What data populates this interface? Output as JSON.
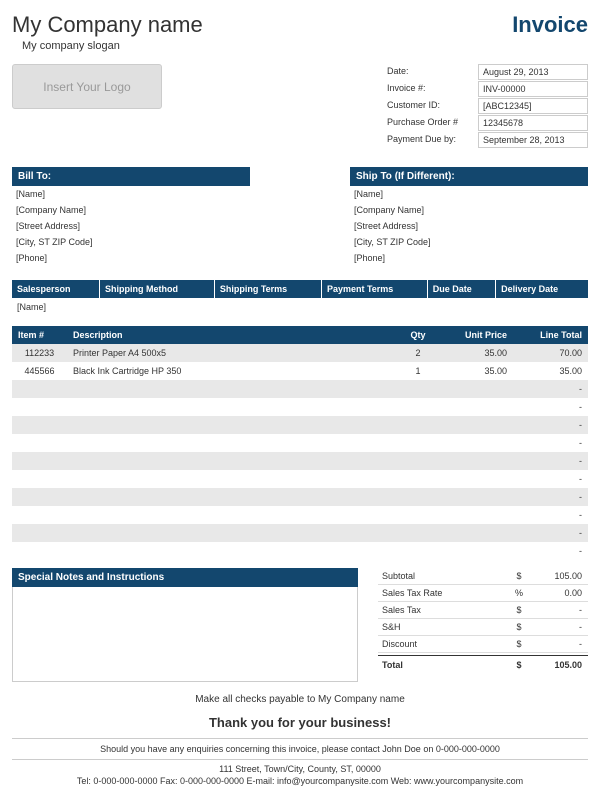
{
  "header": {
    "company_name": "My Company name",
    "slogan": "My company slogan",
    "title": "Invoice",
    "logo_placeholder": "Insert Your Logo"
  },
  "meta": {
    "rows": [
      {
        "label": "Date:",
        "value": "August 29, 2013"
      },
      {
        "label": "Invoice #:",
        "value": "INV-00000"
      },
      {
        "label": "Customer ID:",
        "value": "[ABC12345]"
      },
      {
        "label": "Purchase Order #",
        "value": "12345678"
      },
      {
        "label": "Payment Due by:",
        "value": "September 28, 2013"
      }
    ]
  },
  "bill_to": {
    "header": "Bill To:",
    "lines": [
      "[Name]",
      "[Company Name]",
      "[Street Address]",
      "[City, ST  ZIP Code]",
      "[Phone]"
    ]
  },
  "ship_to": {
    "header": "Ship To (If Different):",
    "lines": [
      "[Name]",
      "[Company Name]",
      "[Street Address]",
      "[City, ST  ZIP Code]",
      "[Phone]"
    ]
  },
  "terms": {
    "headers": [
      "Salesperson",
      "Shipping Method",
      "Shipping Terms",
      "Payment Terms",
      "Due Date",
      "Delivery Date"
    ],
    "row": [
      "[Name]",
      "",
      "",
      "",
      "",
      ""
    ]
  },
  "items": {
    "headers": {
      "item": "Item #",
      "desc": "Description",
      "qty": "Qty",
      "price": "Unit Price",
      "total": "Line Total"
    },
    "rows": [
      {
        "item": "112233",
        "desc": "Printer Paper A4 500x5",
        "qty": "2",
        "price": "35.00",
        "total": "70.00"
      },
      {
        "item": "445566",
        "desc": "Black Ink Cartridge HP 350",
        "qty": "1",
        "price": "35.00",
        "total": "35.00"
      },
      {
        "item": "",
        "desc": "",
        "qty": "",
        "price": "",
        "total": "-"
      },
      {
        "item": "",
        "desc": "",
        "qty": "",
        "price": "",
        "total": "-"
      },
      {
        "item": "",
        "desc": "",
        "qty": "",
        "price": "",
        "total": "-"
      },
      {
        "item": "",
        "desc": "",
        "qty": "",
        "price": "",
        "total": "-"
      },
      {
        "item": "",
        "desc": "",
        "qty": "",
        "price": "",
        "total": "-"
      },
      {
        "item": "",
        "desc": "",
        "qty": "",
        "price": "",
        "total": "-"
      },
      {
        "item": "",
        "desc": "",
        "qty": "",
        "price": "",
        "total": "-"
      },
      {
        "item": "",
        "desc": "",
        "qty": "",
        "price": "",
        "total": "-"
      },
      {
        "item": "",
        "desc": "",
        "qty": "",
        "price": "",
        "total": "-"
      },
      {
        "item": "",
        "desc": "",
        "qty": "",
        "price": "",
        "total": "-"
      }
    ]
  },
  "notes": {
    "header": "Special Notes and Instructions"
  },
  "totals": {
    "rows": [
      {
        "label": "Subtotal",
        "sym": "$",
        "val": "105.00"
      },
      {
        "label": "Sales Tax Rate",
        "sym": "%",
        "val": "0.00"
      },
      {
        "label": "Sales Tax",
        "sym": "$",
        "val": "-"
      },
      {
        "label": "S&H",
        "sym": "$",
        "val": "-"
      },
      {
        "label": "Discount",
        "sym": "$",
        "val": "-"
      }
    ],
    "grand": {
      "label": "Total",
      "sym": "$",
      "val": "105.00"
    }
  },
  "footer": {
    "payable": "Make all checks payable to My Company name",
    "thanks": "Thank you for your business!",
    "enquiry": "Should you have any enquiries concerning this invoice, please contact John Doe on 0-000-000-0000",
    "address": "111 Street, Town/City, County, ST, 00000",
    "contact": "Tel: 0-000-000-0000 Fax: 0-000-000-0000 E-mail: info@yourcompanysite.com Web: www.yourcompanysite.com"
  },
  "colors": {
    "accent": "#13476e",
    "stripe": "#e8e8e8",
    "border": "#cccccc"
  }
}
